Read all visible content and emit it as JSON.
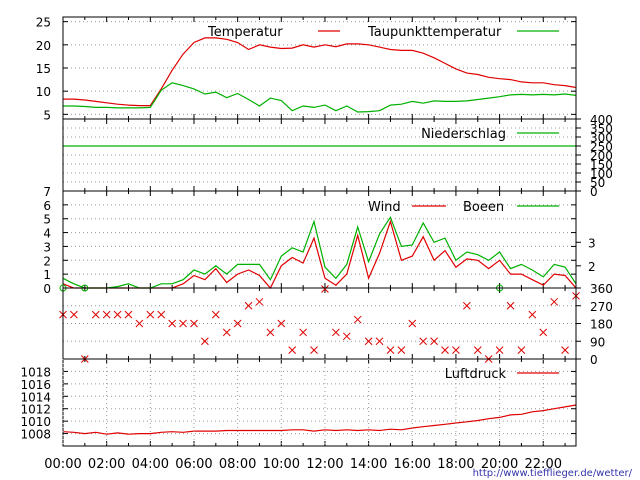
{
  "chart_data": [
    {
      "type": "line",
      "ylim": [
        4,
        26
      ],
      "yticks": [
        5,
        10,
        15,
        20,
        25
      ],
      "series": [
        {
          "name": "Temperatur",
          "color": "#e00000",
          "x": [
            0,
            0.5,
            1,
            1.5,
            2,
            2.5,
            3,
            3.5,
            4,
            4.5,
            5,
            5.5,
            6,
            6.5,
            7,
            7.5,
            8,
            8.5,
            9,
            9.5,
            10,
            10.5,
            11,
            11.5,
            12,
            12.5,
            13,
            13.5,
            14,
            14.5,
            15,
            15.5,
            16,
            16.5,
            17,
            17.5,
            18,
            18.5,
            19,
            19.5,
            20,
            20.5,
            21,
            21.5,
            22,
            22.5,
            23,
            23.5
          ],
          "values": [
            8.3,
            8.3,
            8.1,
            7.8,
            7.5,
            7.2,
            7.0,
            6.9,
            6.9,
            10.5,
            14.5,
            18.0,
            20.5,
            21.5,
            21.5,
            21.2,
            20.5,
            19.0,
            20.0,
            19.5,
            19.2,
            19.3,
            20.0,
            19.5,
            20.0,
            19.6,
            20.2,
            20.2,
            20.0,
            19.5,
            19.0,
            18.8,
            18.8,
            18.2,
            17.2,
            16.0,
            14.8,
            13.9,
            13.6,
            13.0,
            12.7,
            12.5,
            12.0,
            11.8,
            11.8,
            11.4,
            11.2,
            10.8
          ]
        },
        {
          "name": "Taupunkttemperatur",
          "color": "#00b000",
          "x": [
            0,
            0.5,
            1,
            1.5,
            2,
            2.5,
            3,
            3.5,
            4,
            4.5,
            5,
            5.5,
            6,
            6.5,
            7,
            7.5,
            8,
            8.5,
            9,
            9.5,
            10,
            10.5,
            11,
            11.5,
            12,
            12.5,
            13,
            13.5,
            14,
            14.5,
            15,
            15.5,
            16,
            16.5,
            17,
            17.5,
            18,
            18.5,
            19,
            19.5,
            20,
            20.5,
            21,
            21.5,
            22,
            22.5,
            23,
            23.5
          ],
          "values": [
            6.8,
            6.8,
            6.7,
            6.5,
            6.5,
            6.4,
            6.4,
            6.4,
            6.5,
            10.2,
            11.8,
            11.2,
            10.5,
            9.4,
            9.8,
            8.6,
            9.5,
            8.2,
            6.8,
            8.5,
            8.0,
            5.8,
            6.8,
            6.5,
            7.0,
            5.8,
            6.8,
            5.5,
            5.6,
            5.8,
            7.0,
            7.2,
            7.8,
            7.4,
            7.9,
            7.8,
            7.8,
            7.9,
            8.2,
            8.5,
            8.8,
            9.2,
            9.3,
            9.2,
            9.3,
            9.2,
            9.4,
            9.1
          ]
        }
      ]
    },
    {
      "type": "line",
      "ylim": [
        0,
        400
      ],
      "yticks": [
        0,
        50,
        100,
        150,
        200,
        250,
        300,
        350,
        400
      ],
      "yaxis_side": "right",
      "series": [
        {
          "name": "Niederschlag",
          "color": "#00b000",
          "x": [
            0,
            23.5
          ],
          "values": [
            250,
            250
          ]
        }
      ]
    },
    {
      "type": "line",
      "ylim": [
        0,
        7
      ],
      "yticks": [
        0,
        1,
        2,
        3,
        4,
        5,
        6,
        7
      ],
      "right_ticks": [
        {
          "value": 1.6,
          "label": "2"
        },
        {
          "value": 3.3,
          "label": "3"
        }
      ],
      "series": [
        {
          "name": "Wind",
          "color": "#e00000",
          "x": [
            0,
            0.5,
            1,
            1.5,
            2,
            2.5,
            3,
            3.5,
            4,
            4.5,
            5,
            5.5,
            6,
            6.5,
            7,
            7.5,
            8,
            8.5,
            9,
            9.5,
            10,
            10.5,
            11,
            11.5,
            12,
            12.5,
            13,
            13.5,
            14,
            14.5,
            15,
            15.5,
            16,
            16.5,
            17,
            17.5,
            18,
            18.5,
            19,
            19.5,
            20,
            20.5,
            21,
            21.5,
            22,
            22.5,
            23,
            23.5
          ],
          "values": [
            0.3,
            0,
            0,
            0,
            0,
            0,
            0,
            0,
            0,
            0,
            0,
            0.3,
            0.9,
            0.6,
            1.4,
            0.4,
            1.0,
            1.3,
            0.9,
            0,
            1.6,
            2.2,
            1.8,
            3.6,
            0.7,
            0.2,
            1.0,
            3.8,
            0.7,
            2.5,
            4.8,
            2.0,
            2.3,
            3.7,
            2.0,
            2.7,
            1.5,
            2.1,
            2.0,
            1.4,
            2.0,
            1.0,
            1.0,
            0.6,
            0.2,
            1.0,
            0.9,
            0
          ]
        },
        {
          "name": "Boeen",
          "color": "#00b000",
          "x": [
            0,
            0.5,
            1,
            1.5,
            2,
            2.5,
            3,
            3.5,
            4,
            4.5,
            5,
            5.5,
            6,
            6.5,
            7,
            7.5,
            8,
            8.5,
            9,
            9.5,
            10,
            10.5,
            11,
            11.5,
            12,
            12.5,
            13,
            13.5,
            14,
            14.5,
            15,
            15.5,
            16,
            16.5,
            17,
            17.5,
            18,
            18.5,
            19,
            19.5,
            20,
            20.5,
            21,
            21.5,
            22,
            22.5,
            23,
            23.5
          ],
          "values": [
            0.7,
            0.3,
            0,
            0,
            0,
            0.1,
            0.3,
            0,
            0,
            0.3,
            0.3,
            0.6,
            1.3,
            1.0,
            1.6,
            1.0,
            1.7,
            1.7,
            1.7,
            0.6,
            2.3,
            2.9,
            2.6,
            4.8,
            1.5,
            0.7,
            1.7,
            4.4,
            1.9,
            3.9,
            5.1,
            3.0,
            3.1,
            4.7,
            3.3,
            3.6,
            2.0,
            2.6,
            2.4,
            2.0,
            2.6,
            1.4,
            1.7,
            1.3,
            0.8,
            1.7,
            1.5,
            0.3
          ]
        }
      ]
    },
    {
      "type": "scatter",
      "ylim": [
        0,
        360
      ],
      "yticks": [
        0,
        90,
        180,
        270,
        360
      ],
      "yaxis_side": "right",
      "series": [
        {
          "name": "",
          "color": "#e00000",
          "marker": "x",
          "x": [
            0,
            0.5,
            1,
            1.5,
            2,
            2.5,
            3,
            3.5,
            4,
            4.5,
            5,
            5.5,
            6,
            6.5,
            7,
            7.5,
            8,
            8.5,
            9,
            9.5,
            10,
            10.5,
            11,
            11.5,
            12,
            12.5,
            13,
            13.5,
            14,
            14.5,
            15,
            15.5,
            16,
            16.5,
            17,
            17.5,
            18,
            18.5,
            19,
            19.5,
            20,
            20.5,
            21,
            21.5,
            22,
            22.5,
            23,
            23.5
          ],
          "values": [
            225,
            225,
            0,
            225,
            225,
            225,
            225,
            180,
            225,
            225,
            180,
            180,
            180,
            90,
            225,
            135,
            180,
            270,
            290,
            135,
            180,
            45,
            135,
            45,
            355,
            135,
            115,
            200,
            90,
            90,
            45,
            45,
            180,
            90,
            90,
            45,
            45,
            270,
            45,
            0,
            45,
            270,
            45,
            225,
            135,
            290,
            45,
            320
          ]
        },
        {
          "name": "",
          "color": "#00b000",
          "marker": "o",
          "x": [
            0,
            1,
            20
          ],
          "values": [
            360,
            360,
            360
          ]
        }
      ]
    },
    {
      "type": "line",
      "ylim": [
        1006,
        1020
      ],
      "yticks": [
        1008,
        1010,
        1012,
        1014,
        1016,
        1018
      ],
      "xticks": [
        "00:00",
        "02:00",
        "04:00",
        "06:00",
        "08:00",
        "10:00",
        "12:00",
        "14:00",
        "16:00",
        "18:00",
        "20:00",
        "22:00"
      ],
      "series": [
        {
          "name": "Luftdruck",
          "color": "#e00000",
          "x": [
            0,
            0.5,
            1,
            1.5,
            2,
            2.5,
            3,
            3.5,
            4,
            4.5,
            5,
            5.5,
            6,
            6.5,
            7,
            7.5,
            8,
            8.5,
            9,
            9.5,
            10,
            10.5,
            11,
            11.5,
            12,
            12.5,
            13,
            13.5,
            14,
            14.5,
            15,
            15.5,
            16,
            16.5,
            17,
            17.5,
            18,
            18.5,
            19,
            19.5,
            20,
            20.5,
            21,
            21.5,
            22,
            22.5,
            23,
            23.5
          ],
          "values": [
            1008.3,
            1008.2,
            1008.0,
            1008.2,
            1007.9,
            1008.1,
            1007.9,
            1008.0,
            1008.0,
            1008.2,
            1008.3,
            1008.2,
            1008.4,
            1008.4,
            1008.4,
            1008.5,
            1008.5,
            1008.5,
            1008.5,
            1008.5,
            1008.5,
            1008.6,
            1008.6,
            1008.4,
            1008.6,
            1008.5,
            1008.6,
            1008.5,
            1008.6,
            1008.5,
            1008.7,
            1008.6,
            1008.9,
            1009.1,
            1009.3,
            1009.5,
            1009.7,
            1009.9,
            1010.1,
            1010.4,
            1010.6,
            1011.0,
            1011.1,
            1011.5,
            1011.7,
            1012.0,
            1012.3,
            1012.6
          ]
        }
      ]
    }
  ],
  "footer_url": "http://www.tiefflieger.de/wetter/"
}
